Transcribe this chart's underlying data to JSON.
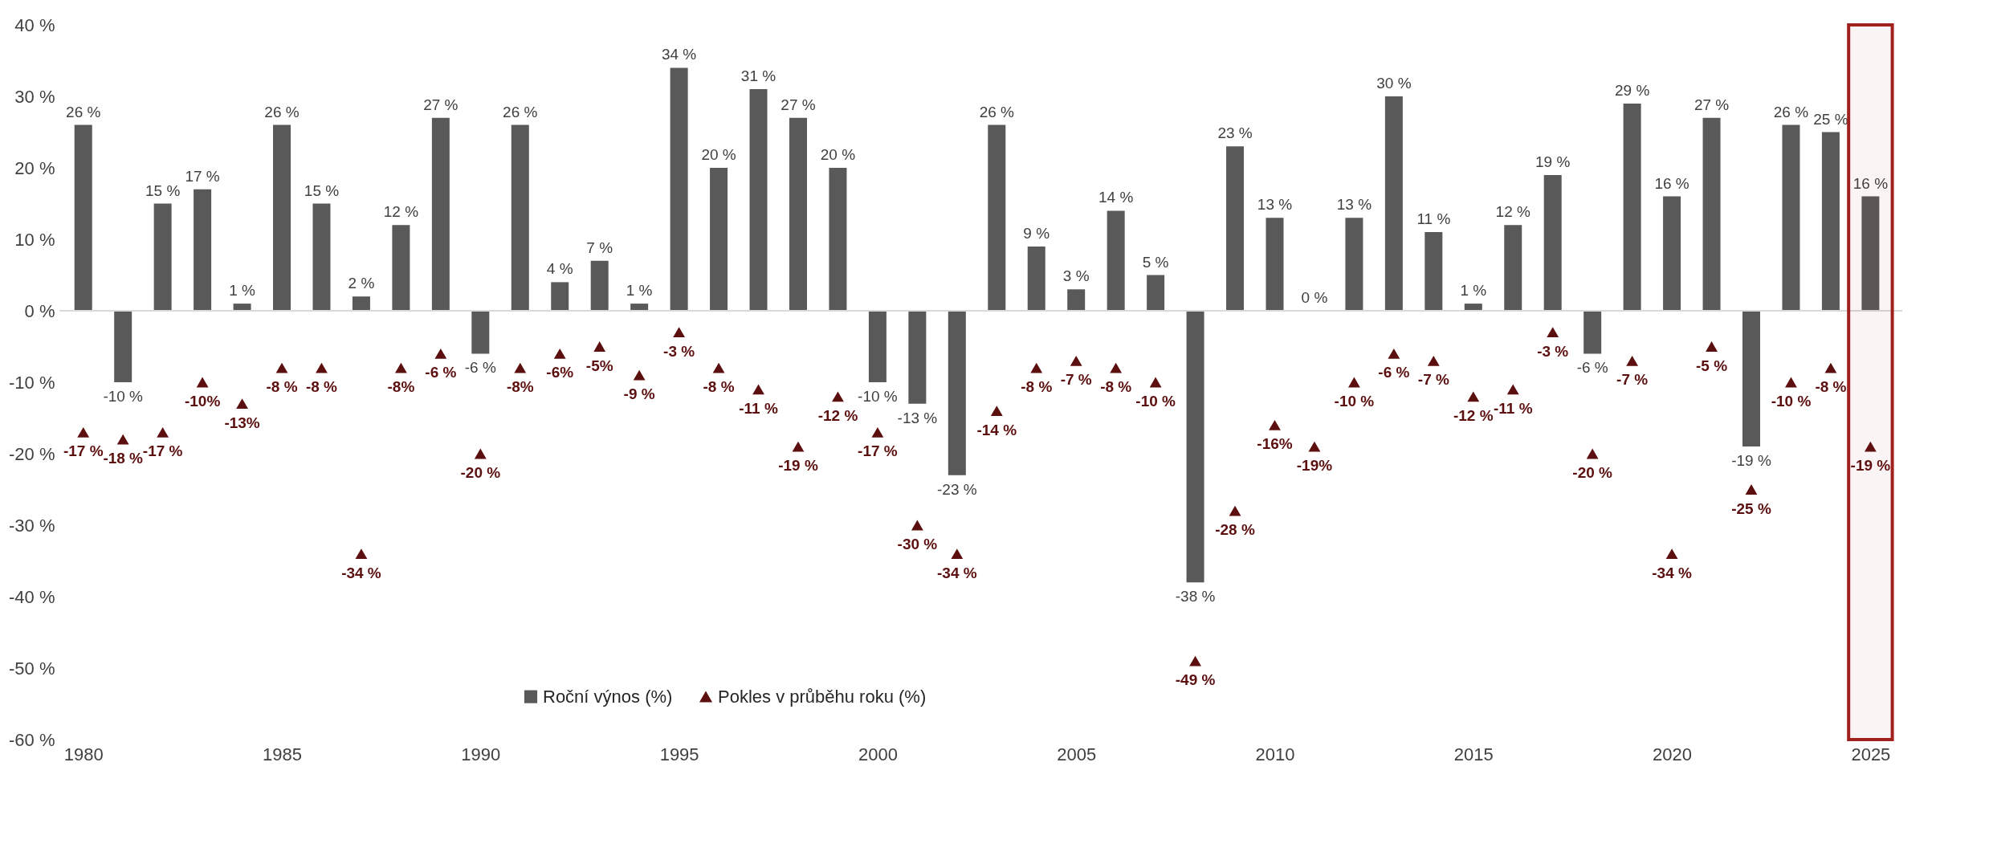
{
  "chart_data": {
    "type": "bar",
    "x": [
      1980,
      1981,
      1982,
      1983,
      1984,
      1985,
      1986,
      1987,
      1988,
      1989,
      1990,
      1991,
      1992,
      1993,
      1994,
      1995,
      1996,
      1997,
      1998,
      1999,
      2000,
      2001,
      2002,
      2003,
      2004,
      2005,
      2006,
      2007,
      2008,
      2009,
      2010,
      2011,
      2012,
      2013,
      2014,
      2015,
      2016,
      2017,
      2018,
      2019,
      2020,
      2021,
      2022,
      2023,
      2024,
      2025
    ],
    "series": [
      {
        "name": "Roční výnos (%)",
        "color": "#595959",
        "values": [
          26,
          -10,
          15,
          17,
          1,
          26,
          15,
          2,
          12,
          27,
          -6,
          26,
          4,
          7,
          1,
          34,
          20,
          31,
          27,
          20,
          -10,
          -13,
          -23,
          26,
          9,
          3,
          14,
          5,
          -38,
          23,
          13,
          0,
          13,
          30,
          11,
          1,
          12,
          19,
          -6,
          29,
          16,
          27,
          -19,
          26,
          25,
          16
        ],
        "value_labels": [
          "26 %",
          "-10 %",
          "15 %",
          "17 %",
          "1 %",
          "26 %",
          "15 %",
          "2 %",
          "12 %",
          "27 %",
          "-6 %",
          "26 %",
          "4 %",
          "7 %",
          "1 %",
          "34 %",
          "20 %",
          "31 %",
          "27 %",
          "20 %",
          "-10 %",
          "-13 %",
          "-23 %",
          "26 %",
          "9 %",
          "3 %",
          "14 %",
          "5 %",
          "-38 %",
          "23 %",
          "13 %",
          "0 %",
          "13 %",
          "30 %",
          "11 %",
          "1 %",
          "12 %",
          "19 %",
          "-6 %",
          "29 %",
          "16 %",
          "27 %",
          "-19 %",
          "26 %",
          "25 %",
          "16 %"
        ]
      },
      {
        "name": "Pokles v průběhu roku (%)",
        "type": "scatter",
        "marker": "triangle",
        "color": "#5c0f0f",
        "values": [
          -17,
          -18,
          -17,
          -10,
          -13,
          -8,
          -8,
          -34,
          -8,
          -6,
          -20,
          -8,
          -6,
          -5,
          -9,
          -3,
          -8,
          -11,
          -19,
          -12,
          -17,
          -30,
          -34,
          -14,
          -8,
          -7,
          -8,
          -10,
          -49,
          -28,
          -16,
          -19,
          -10,
          -6,
          -7,
          -12,
          -11,
          -3,
          -20,
          -7,
          -34,
          -5,
          -25,
          -10,
          -8,
          -19
        ],
        "value_labels": [
          "-17 %",
          "-18 %",
          "-17 %",
          "-10%",
          "-13%",
          "-8 %",
          "-8 %",
          "-34 %",
          "-8%",
          "-6 %",
          "-20 %",
          "-8%",
          "-6%",
          "-5%",
          "-9 %",
          "-3 %",
          "-8 %",
          "-11 %",
          "-19 %",
          "-12 %",
          "-17 %",
          "-30 %",
          "-34 %",
          "-14 %",
          "-8 %",
          "-7 %",
          "-8 %",
          "-10 %",
          "-49 %",
          "-28 %",
          "-16%",
          "-19%",
          "-10 %",
          "-6 %",
          "-7 %",
          "-12 %",
          "-11 %",
          "-3 %",
          "-20 %",
          "-7 %",
          "-34 %",
          "-5 %",
          "-25 %",
          "-10 %",
          "-8 %",
          "-19 %"
        ]
      }
    ],
    "xlim": [
      1979.5,
      2025.7
    ],
    "xticks": [
      1980,
      1985,
      1990,
      1995,
      2000,
      2005,
      2010,
      2015,
      2020,
      2025
    ],
    "ylim": [
      -60,
      40
    ],
    "yticks": [
      {
        "value": 40,
        "label": "40 %"
      },
      {
        "value": 30,
        "label": "30 %"
      },
      {
        "value": 20,
        "label": "20 %"
      },
      {
        "value": 10,
        "label": "10 %"
      },
      {
        "value": 0,
        "label": "0 %"
      },
      {
        "value": -10,
        "label": "-10 %"
      },
      {
        "value": -20,
        "label": "-20 %"
      },
      {
        "value": -30,
        "label": "-30 %"
      },
      {
        "value": -40,
        "label": "-40 %"
      },
      {
        "value": -50,
        "label": "-50 %"
      },
      {
        "value": -60,
        "label": "-60 %"
      }
    ],
    "ref_lines": [
      {
        "axis": "y",
        "value": 0,
        "color": "#d9d9d9"
      }
    ],
    "bands": [
      {
        "axis": "x",
        "from": 2024.45,
        "to": 2025.55,
        "color": "#a01f1f"
      }
    ],
    "grid": false,
    "legend": "bottom"
  }
}
